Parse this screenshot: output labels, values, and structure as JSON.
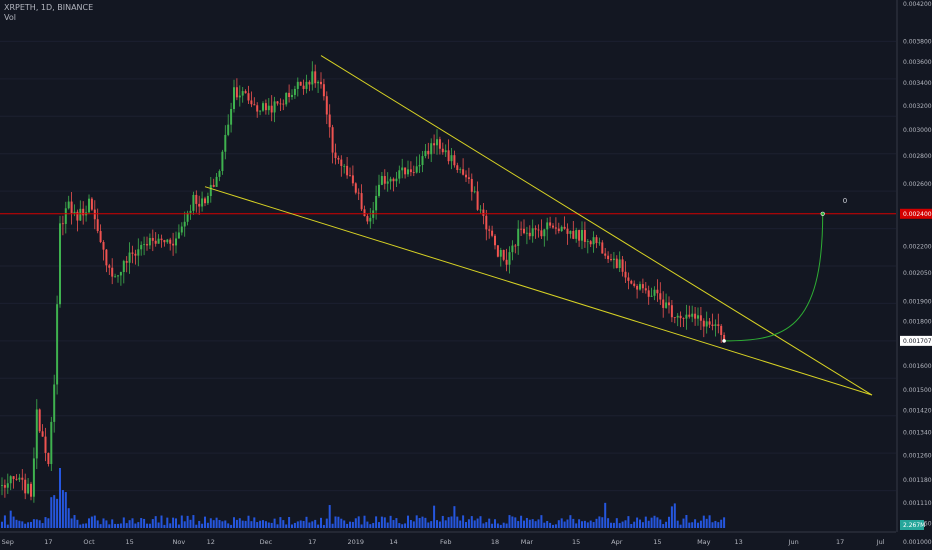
{
  "header": {
    "symbol": "XRPETH, 1D, BINANCE",
    "volume_label": "Vol"
  },
  "price_axis": {
    "ticks": [
      "0.00420000",
      "0.00380000",
      "0.00360000",
      "0.00340000",
      "0.00320000",
      "0.00300000",
      "0.00280000",
      "0.00260000",
      "0.00220000",
      "0.00205000",
      "0.00190000",
      "0.00180000",
      "0.00160000",
      "0.00150000",
      "0.00142000",
      "0.00134000",
      "0.00126000",
      "0.00118000",
      "0.00111000",
      "0.00105000",
      "0.00100000"
    ],
    "ref_line_label": "0.00240000",
    "last_price_label": "0.00170702",
    "volume_label": "2.267M"
  },
  "time_axis": {
    "labels": [
      "Sep",
      "17",
      "Oct",
      "15",
      "Nov",
      "12",
      "Dec",
      "17",
      "2019",
      "14",
      "Feb",
      "18",
      "Mar",
      "15",
      "Apr",
      "15",
      "May",
      "13",
      "Jun",
      "17",
      "Jul"
    ]
  },
  "annotation": {
    "target_marker": "0"
  },
  "colors": {
    "background": "#131722",
    "up": "#26a69a",
    "up_body": "#3fb24f",
    "down": "#ef5350",
    "volume": "#2962ff",
    "wedge": "#d7d224",
    "horizontal": "#d50000",
    "projection": "#2eae34",
    "axis_bg": "#131722"
  },
  "chart_data": {
    "type": "candlestick",
    "symbol": "XRPETH",
    "interval": "1D",
    "exchange": "BINANCE",
    "y_scale": "log",
    "ylim": [
      0.001,
      0.0042
    ],
    "x_range": [
      "2018-09-01",
      "2019-07-01"
    ],
    "price_anchors": [
      {
        "date": "2018-09-01",
        "price": 0.00116
      },
      {
        "date": "2018-09-06",
        "price": 0.00118
      },
      {
        "date": "2018-09-11",
        "price": 0.00114
      },
      {
        "date": "2018-09-13",
        "price": 0.0014
      },
      {
        "date": "2018-09-15",
        "price": 0.00133
      },
      {
        "date": "2018-09-17",
        "price": 0.00125
      },
      {
        "date": "2018-09-19",
        "price": 0.0015
      },
      {
        "date": "2018-09-21",
        "price": 0.00232
      },
      {
        "date": "2018-09-24",
        "price": 0.00248
      },
      {
        "date": "2018-09-26",
        "price": 0.00238
      },
      {
        "date": "2018-09-29",
        "price": 0.00242
      },
      {
        "date": "2018-10-01",
        "price": 0.00248
      },
      {
        "date": "2018-10-05",
        "price": 0.0022
      },
      {
        "date": "2018-10-10",
        "price": 0.00202
      },
      {
        "date": "2018-10-14",
        "price": 0.00212
      },
      {
        "date": "2018-10-20",
        "price": 0.00222
      },
      {
        "date": "2018-10-31",
        "price": 0.00224
      },
      {
        "date": "2018-11-06",
        "price": 0.0025
      },
      {
        "date": "2018-11-10",
        "price": 0.00246
      },
      {
        "date": "2018-11-15",
        "price": 0.0027
      },
      {
        "date": "2018-11-20",
        "price": 0.00335
      },
      {
        "date": "2018-11-24",
        "price": 0.00328
      },
      {
        "date": "2018-11-28",
        "price": 0.00318
      },
      {
        "date": "2018-12-05",
        "price": 0.0032
      },
      {
        "date": "2018-12-12",
        "price": 0.00338
      },
      {
        "date": "2018-12-17",
        "price": 0.00345
      },
      {
        "date": "2018-12-20",
        "price": 0.00338
      },
      {
        "date": "2018-12-24",
        "price": 0.00285
      },
      {
        "date": "2018-12-28",
        "price": 0.0027
      },
      {
        "date": "2019-01-02",
        "price": 0.0025
      },
      {
        "date": "2019-01-05",
        "price": 0.00232
      },
      {
        "date": "2019-01-10",
        "price": 0.00262
      },
      {
        "date": "2019-01-16",
        "price": 0.00268
      },
      {
        "date": "2019-01-23",
        "price": 0.00272
      },
      {
        "date": "2019-01-28",
        "price": 0.00292
      },
      {
        "date": "2019-02-02",
        "price": 0.0028
      },
      {
        "date": "2019-02-08",
        "price": 0.00264
      },
      {
        "date": "2019-02-13",
        "price": 0.00242
      },
      {
        "date": "2019-02-18",
        "price": 0.0022
      },
      {
        "date": "2019-02-22",
        "price": 0.0021
      },
      {
        "date": "2019-02-27",
        "price": 0.00232
      },
      {
        "date": "2019-03-04",
        "price": 0.00228
      },
      {
        "date": "2019-03-10",
        "price": 0.00234
      },
      {
        "date": "2019-03-16",
        "price": 0.00228
      },
      {
        "date": "2019-03-24",
        "price": 0.00224
      },
      {
        "date": "2019-03-30",
        "price": 0.00215
      },
      {
        "date": "2019-04-04",
        "price": 0.00205
      },
      {
        "date": "2019-04-08",
        "price": 0.00196
      },
      {
        "date": "2019-04-14",
        "price": 0.00194
      },
      {
        "date": "2019-04-20",
        "price": 0.00185
      },
      {
        "date": "2019-04-26",
        "price": 0.00182
      },
      {
        "date": "2019-05-01",
        "price": 0.0018
      },
      {
        "date": "2019-05-05",
        "price": 0.00177
      },
      {
        "date": "2019-05-08",
        "price": 0.00171
      }
    ],
    "drawings": {
      "wedge_upper": [
        {
          "date": "2018-12-20",
          "price": 0.00366
        },
        {
          "date": "2019-06-28",
          "price": 0.00148
        }
      ],
      "wedge_lower": [
        {
          "date": "2018-11-10",
          "price": 0.00258
        },
        {
          "date": "2019-06-28",
          "price": 0.00148
        }
      ],
      "horizontal_level": 0.0024,
      "projection": [
        {
          "date": "2019-05-08",
          "price": 0.00171
        },
        {
          "date": "2019-06-11",
          "price": 0.0024
        }
      ]
    }
  }
}
